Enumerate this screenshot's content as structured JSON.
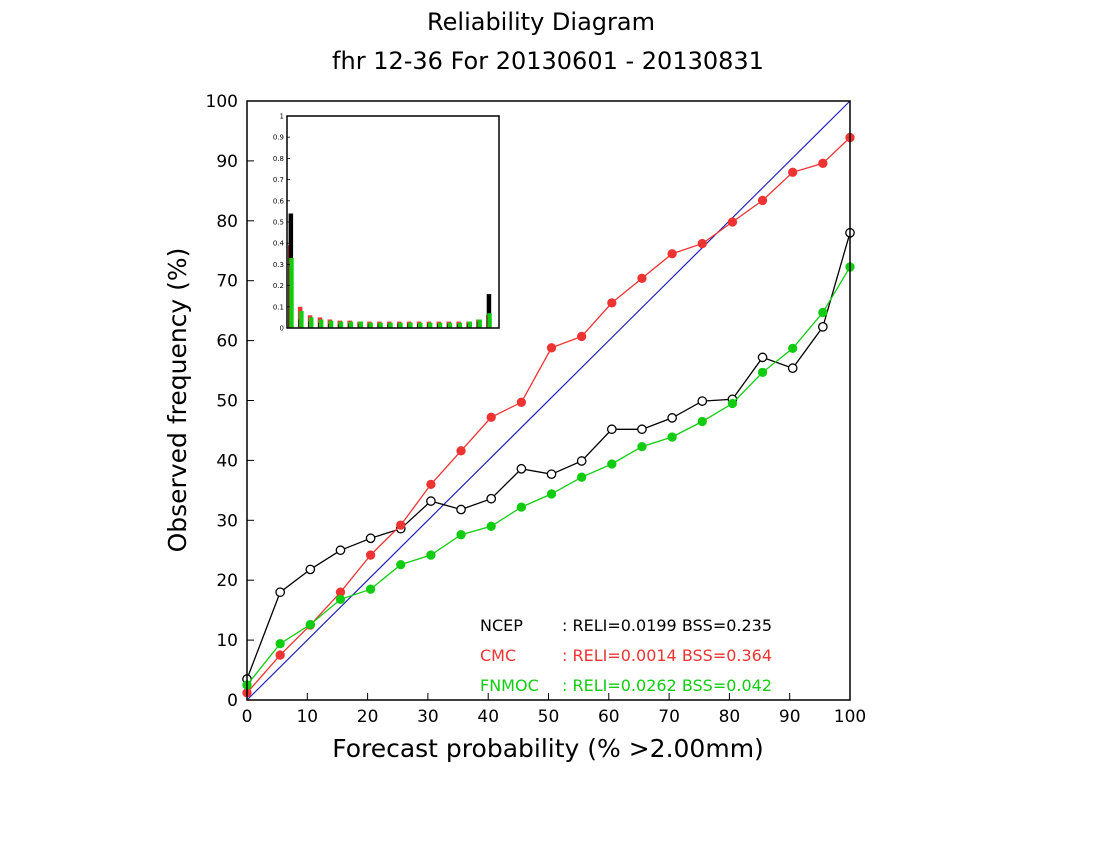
{
  "chart_data": {
    "type": "line",
    "title": "Reliability Diagram",
    "subtitle": "fhr 12-36 For 20130601 - 20130831",
    "xlabel": "Forecast probability (% >2.00mm)",
    "ylabel": "Observed frequency (%)",
    "xlim": [
      0,
      100
    ],
    "ylim": [
      0,
      100
    ],
    "xticks": [
      "0",
      "10",
      "20",
      "30",
      "40",
      "50",
      "60",
      "70",
      "80",
      "90",
      "100"
    ],
    "yticks": [
      "0",
      "10",
      "20",
      "30",
      "40",
      "50",
      "60",
      "70",
      "80",
      "90",
      "100"
    ],
    "diagonal_color": "#2222bb",
    "series": [
      {
        "name": "NCEP",
        "color": "#000000",
        "marker": "open",
        "x": [
          0,
          5.5,
          10.5,
          15.5,
          20.5,
          25.5,
          30.5,
          35.5,
          40.5,
          45.5,
          50.5,
          55.5,
          60.5,
          65.5,
          70.5,
          75.5,
          80.5,
          85.5,
          90.5,
          95.5,
          100
        ],
        "y": [
          3.5,
          18,
          21.8,
          25,
          27,
          28.6,
          33.2,
          31.8,
          33.6,
          38.6,
          37.7,
          39.9,
          45.2,
          45.2,
          47.1,
          49.9,
          50.2,
          57.2,
          55.4,
          62.3,
          78
        ],
        "stats": ": RELI=0.0199 BSS=0.235"
      },
      {
        "name": "CMC",
        "color": "#ee3333",
        "marker": "filled",
        "x": [
          0,
          5.5,
          10.5,
          15.5,
          20.5,
          25.5,
          30.5,
          35.5,
          40.5,
          45.5,
          50.5,
          55.5,
          60.5,
          65.5,
          70.5,
          75.5,
          80.5,
          85.5,
          90.5,
          95.5,
          100
        ],
        "y": [
          1.2,
          7.5,
          12.5,
          18,
          24.2,
          29.2,
          36,
          41.6,
          47.2,
          49.7,
          58.8,
          60.7,
          66.3,
          70.4,
          74.5,
          76.2,
          79.8,
          83.4,
          88.1,
          89.6,
          93.9
        ],
        "stats": ": RELI=0.0014 BSS=0.364"
      },
      {
        "name": "FNMOC",
        "color": "#11cc11",
        "marker": "filled",
        "x": [
          0,
          5.5,
          10.5,
          15.5,
          20.5,
          25.5,
          30.5,
          35.5,
          40.5,
          45.5,
          50.5,
          55.5,
          60.5,
          65.5,
          70.5,
          75.5,
          80.5,
          85.5,
          90.5,
          95.5,
          100
        ],
        "y": [
          2.5,
          9.4,
          12.6,
          16.8,
          18.5,
          22.6,
          24.2,
          27.6,
          29,
          32.2,
          34.4,
          37.2,
          39.4,
          42.3,
          43.9,
          46.5,
          49.5,
          54.7,
          58.7,
          64.7,
          72.3
        ],
        "stats": ": RELI=0.0262 BSS=0.042"
      }
    ],
    "inset": {
      "type": "bar",
      "ylim": [
        0,
        1
      ],
      "yticks": [
        "0",
        "0.1",
        "0.2",
        "0.3",
        "0.4",
        "0.5",
        "0.6",
        "0.7",
        "0.8",
        "0.9",
        "1"
      ],
      "note": "",
      "bins": 21,
      "series": [
        {
          "name": "CMC",
          "color": "#ee3333",
          "values": [
            0.39,
            0.1,
            0.06,
            0.05,
            0.04,
            0.035,
            0.035,
            0.03,
            0.03,
            0.03,
            0.03,
            0.03,
            0.03,
            0.03,
            0.03,
            0.03,
            0.03,
            0.03,
            0.03,
            0.04,
            0.06
          ]
        },
        {
          "name": "NCEP",
          "color": "#000000",
          "values": [
            0.54,
            0.04,
            0.03,
            0.025,
            0.02,
            0.02,
            0.02,
            0.02,
            0.02,
            0.02,
            0.02,
            0.02,
            0.02,
            0.02,
            0.02,
            0.02,
            0.02,
            0.02,
            0.02,
            0.03,
            0.16
          ]
        },
        {
          "name": "FNMOC",
          "color": "#11cc11",
          "values": [
            0.33,
            0.08,
            0.05,
            0.04,
            0.035,
            0.03,
            0.03,
            0.03,
            0.025,
            0.025,
            0.025,
            0.025,
            0.025,
            0.025,
            0.025,
            0.025,
            0.025,
            0.025,
            0.03,
            0.04,
            0.07
          ]
        }
      ]
    }
  }
}
